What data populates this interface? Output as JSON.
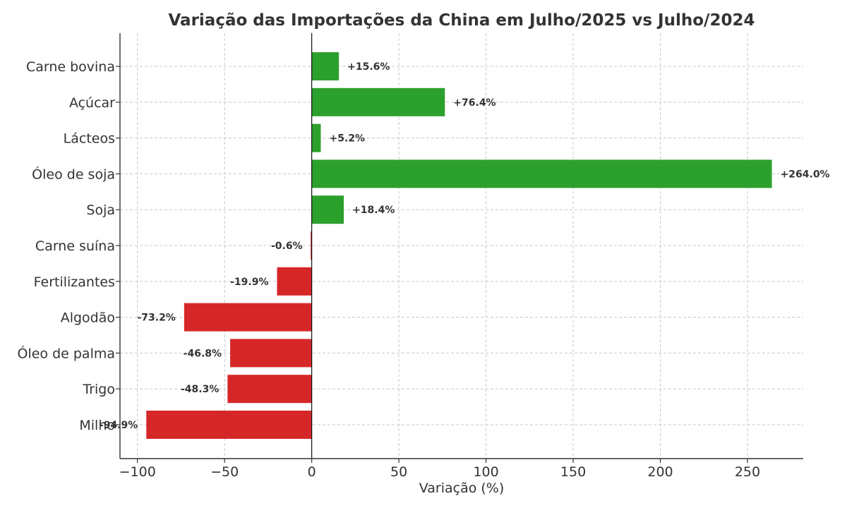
{
  "chart_data": {
    "type": "bar",
    "orientation": "horizontal",
    "title": "Variação das Importações da China em Julho/2025 vs Julho/2024",
    "xlabel": "Variação (%)",
    "ylabel": "",
    "xlim": [
      -110,
      282
    ],
    "xticks": [
      -100,
      -50,
      0,
      50,
      100,
      150,
      200,
      250
    ],
    "xtick_labels": [
      "−100",
      "−50",
      "0",
      "50",
      "100",
      "150",
      "200",
      "250"
    ],
    "grid": true,
    "colors": {
      "positive": "#2ca02c",
      "negative": "#d62728"
    },
    "categories": [
      "Carne bovina",
      "Açúcar",
      "Lácteos",
      "Óleo de soja",
      "Soja",
      "Carne suína",
      "Fertilizantes",
      "Algodão",
      "Óleo de palma",
      "Trigo",
      "Milho"
    ],
    "values": [
      15.6,
      76.4,
      5.2,
      264.0,
      18.4,
      -0.6,
      -19.9,
      -73.2,
      -46.8,
      -48.3,
      -94.9
    ],
    "data_labels": [
      "+15.6%",
      "+76.4%",
      "+5.2%",
      "+264.0%",
      "+18.4%",
      "-0.6%",
      "-19.9%",
      "-73.2%",
      "-46.8%",
      "-48.3%",
      "-94.9%"
    ]
  }
}
